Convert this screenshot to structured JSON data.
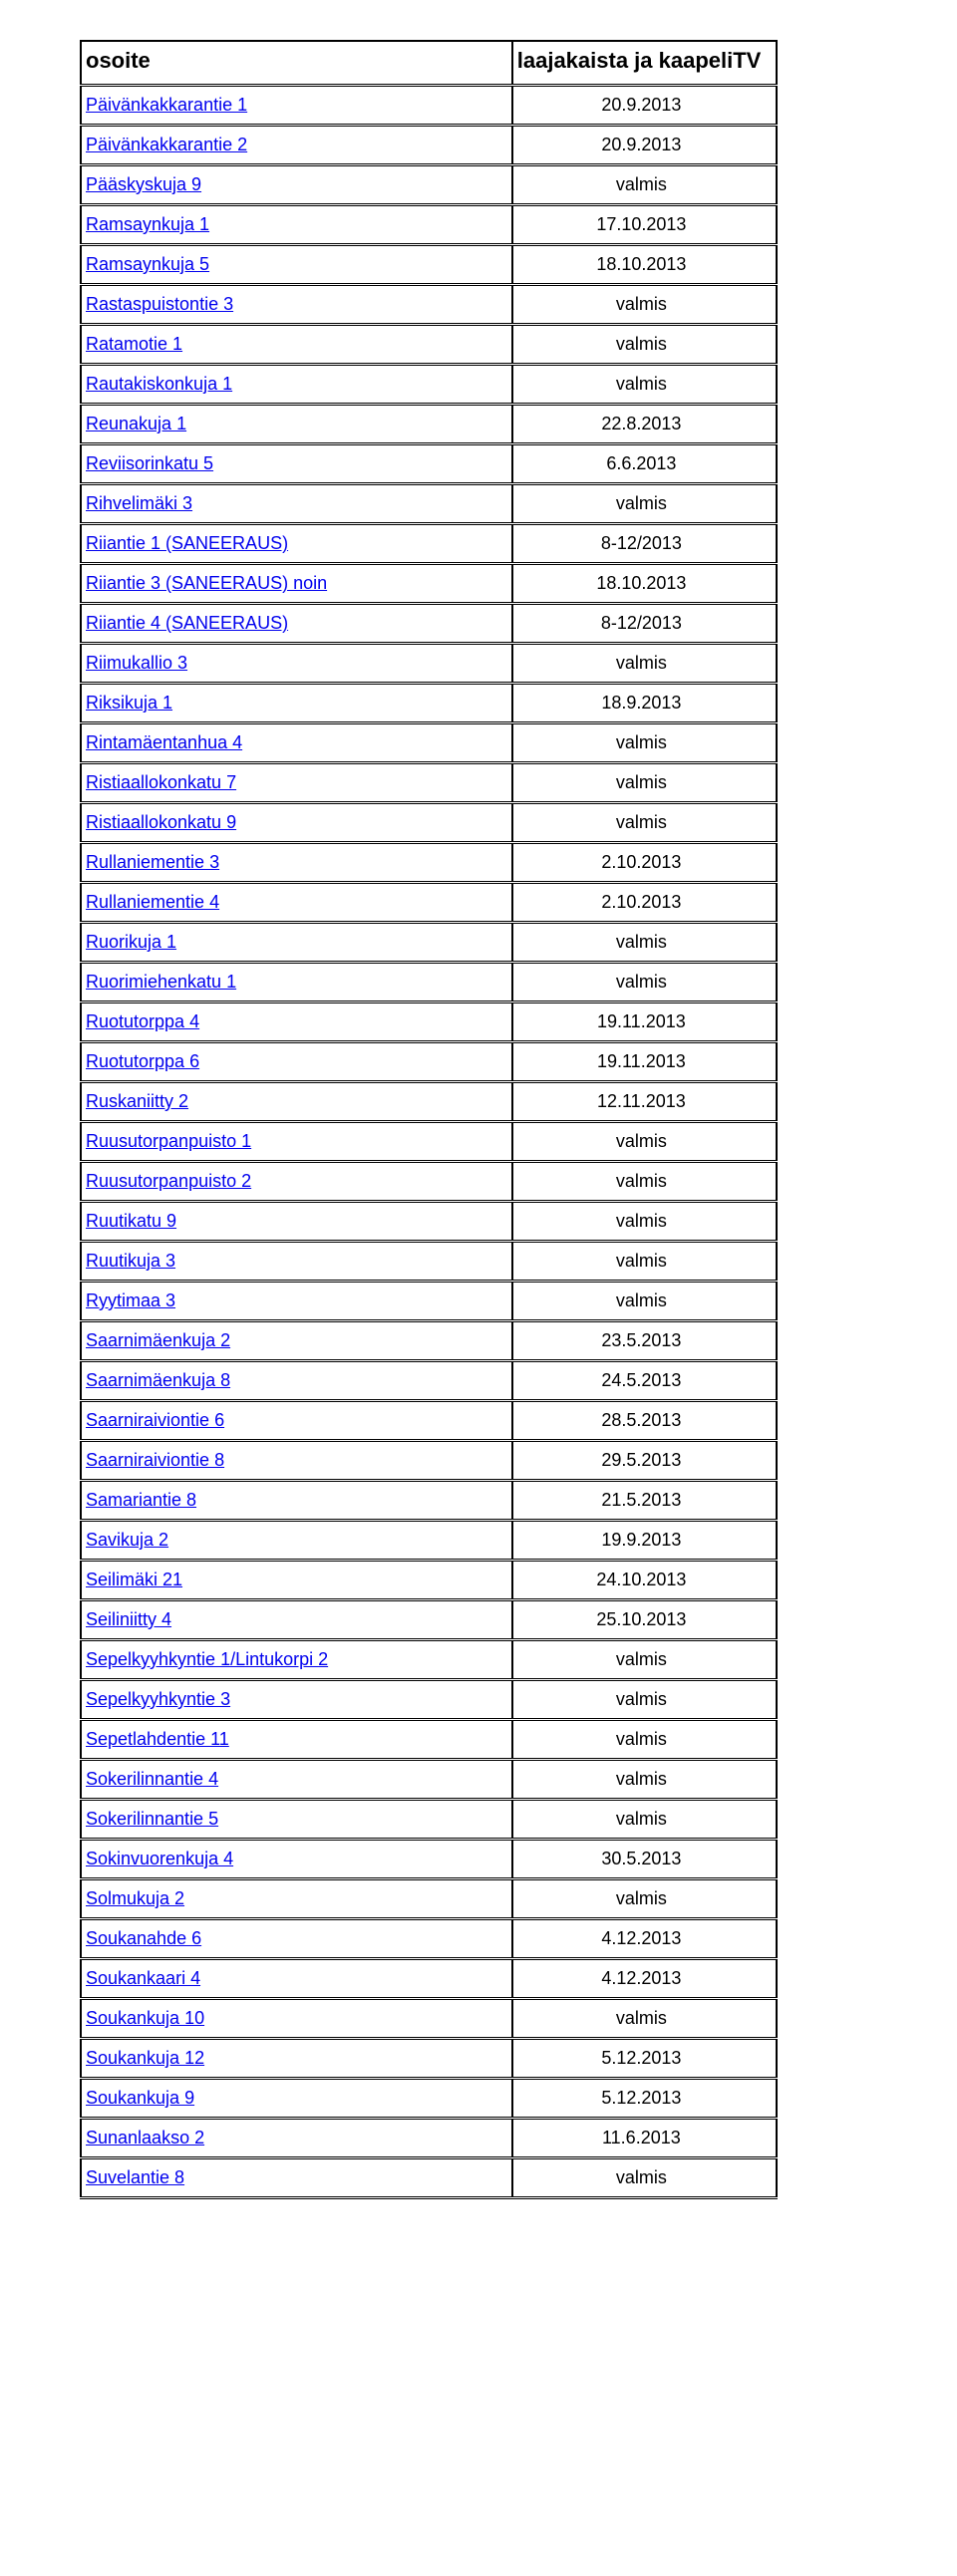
{
  "table": {
    "header": {
      "col1": "osoite",
      "col2": "laajakaista ja kaapeliTV"
    },
    "rows": [
      {
        "addr": "Päivänkakkarantie 1",
        "val": "20.9.2013"
      },
      {
        "addr": "Päivänkakkarantie 2",
        "val": "20.9.2013"
      },
      {
        "addr": "Pääskyskuja 9",
        "val": "valmis"
      },
      {
        "addr": "Ramsaynkuja 1",
        "val": "17.10.2013"
      },
      {
        "addr": "Ramsaynkuja 5",
        "val": "18.10.2013"
      },
      {
        "addr": "Rastaspuistontie 3",
        "val": "valmis"
      },
      {
        "addr": "Ratamotie 1",
        "val": "valmis"
      },
      {
        "addr": "Rautakiskonkuja 1",
        "val": "valmis"
      },
      {
        "addr": "Reunakuja 1",
        "val": "22.8.2013"
      },
      {
        "addr": "Reviisorinkatu 5",
        "val": "6.6.2013"
      },
      {
        "addr": "Rihvelimäki 3",
        "val": "valmis"
      },
      {
        "addr": "Riiantie 1        (SANEERAUS)",
        "val": "8-12/2013"
      },
      {
        "addr": "Riiantie 3        (SANEERAUS)   noin",
        "val": "18.10.2013"
      },
      {
        "addr": "Riiantie 4        (SANEERAUS)",
        "val": "8-12/2013"
      },
      {
        "addr": "Riimukallio 3",
        "val": "valmis"
      },
      {
        "addr": "Riksikuja 1",
        "val": "18.9.2013"
      },
      {
        "addr": "Rintamäentanhua 4",
        "val": "valmis"
      },
      {
        "addr": "Ristiaallokonkatu 7",
        "val": "valmis"
      },
      {
        "addr": "Ristiaallokonkatu 9",
        "val": "valmis"
      },
      {
        "addr": "Rullaniementie 3",
        "val": "2.10.2013"
      },
      {
        "addr": "Rullaniementie 4",
        "val": "2.10.2013"
      },
      {
        "addr": "Ruorikuja 1",
        "val": "valmis"
      },
      {
        "addr": "Ruorimiehenkatu 1",
        "val": "valmis"
      },
      {
        "addr": "Ruotutorppa 4",
        "val": "19.11.2013"
      },
      {
        "addr": "Ruotutorppa 6",
        "val": "19.11.2013"
      },
      {
        "addr": "Ruskaniitty 2",
        "val": "12.11.2013"
      },
      {
        "addr": "Ruusutorpanpuisto 1",
        "val": "valmis"
      },
      {
        "addr": "Ruusutorpanpuisto 2",
        "val": "valmis"
      },
      {
        "addr": "Ruutikatu 9",
        "val": "valmis"
      },
      {
        "addr": "Ruutikuja 3",
        "val": "valmis"
      },
      {
        "addr": "Ryytimaa 3",
        "val": "valmis"
      },
      {
        "addr": "Saarnimäenkuja 2",
        "val": "23.5.2013"
      },
      {
        "addr": "Saarnimäenkuja 8",
        "val": "24.5.2013"
      },
      {
        "addr": "Saarniraiviontie 6",
        "val": "28.5.2013"
      },
      {
        "addr": "Saarniraiviontie 8",
        "val": "29.5.2013"
      },
      {
        "addr": "Samariantie 8",
        "val": "21.5.2013"
      },
      {
        "addr": "Savikuja 2",
        "val": "19.9.2013"
      },
      {
        "addr": "Seilimäki 21",
        "val": "24.10.2013"
      },
      {
        "addr": "Seiliniitty 4",
        "val": "25.10.2013"
      },
      {
        "addr": "Sepelkyyhkyntie 1/Lintukorpi 2",
        "val": "valmis"
      },
      {
        "addr": "Sepelkyyhkyntie 3",
        "val": "valmis"
      },
      {
        "addr": "Sepetlahdentie 11",
        "val": "valmis"
      },
      {
        "addr": "Sokerilinnantie 4",
        "val": "valmis"
      },
      {
        "addr": "Sokerilinnantie 5",
        "val": "valmis"
      },
      {
        "addr": "Sokinvuorenkuja 4",
        "val": "30.5.2013"
      },
      {
        "addr": "Solmukuja 2",
        "val": "valmis"
      },
      {
        "addr": "Soukanahde 6",
        "val": "4.12.2013"
      },
      {
        "addr": "Soukankaari 4",
        "val": "4.12.2013"
      },
      {
        "addr": "Soukankuja 10",
        "val": "valmis"
      },
      {
        "addr": "Soukankuja 12",
        "val": "5.12.2013"
      },
      {
        "addr": "Soukankuja 9",
        "val": "5.12.2013"
      },
      {
        "addr": "Sunanlaakso 2",
        "val": "11.6.2013"
      },
      {
        "addr": "Suvelantie 8",
        "val": "valmis"
      }
    ]
  }
}
